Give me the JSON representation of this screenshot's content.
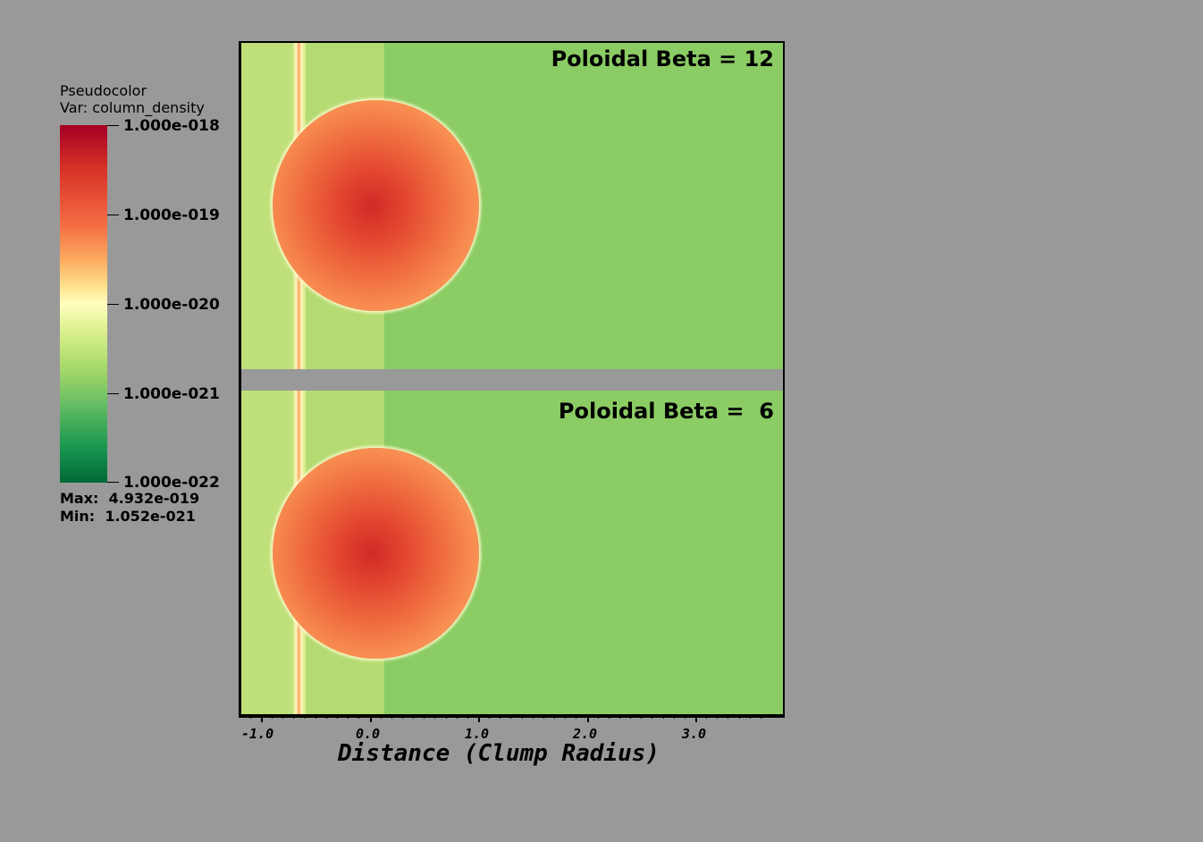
{
  "legend": {
    "title_line1": "Pseudocolor",
    "title_line2": "Var: column_density",
    "ticks": [
      "1.000e-018",
      "1.000e-019",
      "1.000e-020",
      "1.000e-021",
      "1.000e-022"
    ],
    "max_label": "Max:  4.932e-019",
    "min_label": "Min:  1.052e-021",
    "colormap": [
      "#a50026",
      "#d73027",
      "#f46d43",
      "#fdae61",
      "#fee08b",
      "#ffffbf",
      "#d9ef8b",
      "#a6d96a",
      "#66bd63",
      "#1a9850",
      "#006837"
    ]
  },
  "panels": [
    {
      "label": "Poloidal Beta = 12"
    },
    {
      "label": "Poloidal Beta =  6"
    }
  ],
  "x_axis": {
    "title": "Distance (Clump Radius)",
    "tick_labels": [
      "-1.0",
      "0.0",
      "1.0",
      "2.0",
      "3.0"
    ]
  }
}
